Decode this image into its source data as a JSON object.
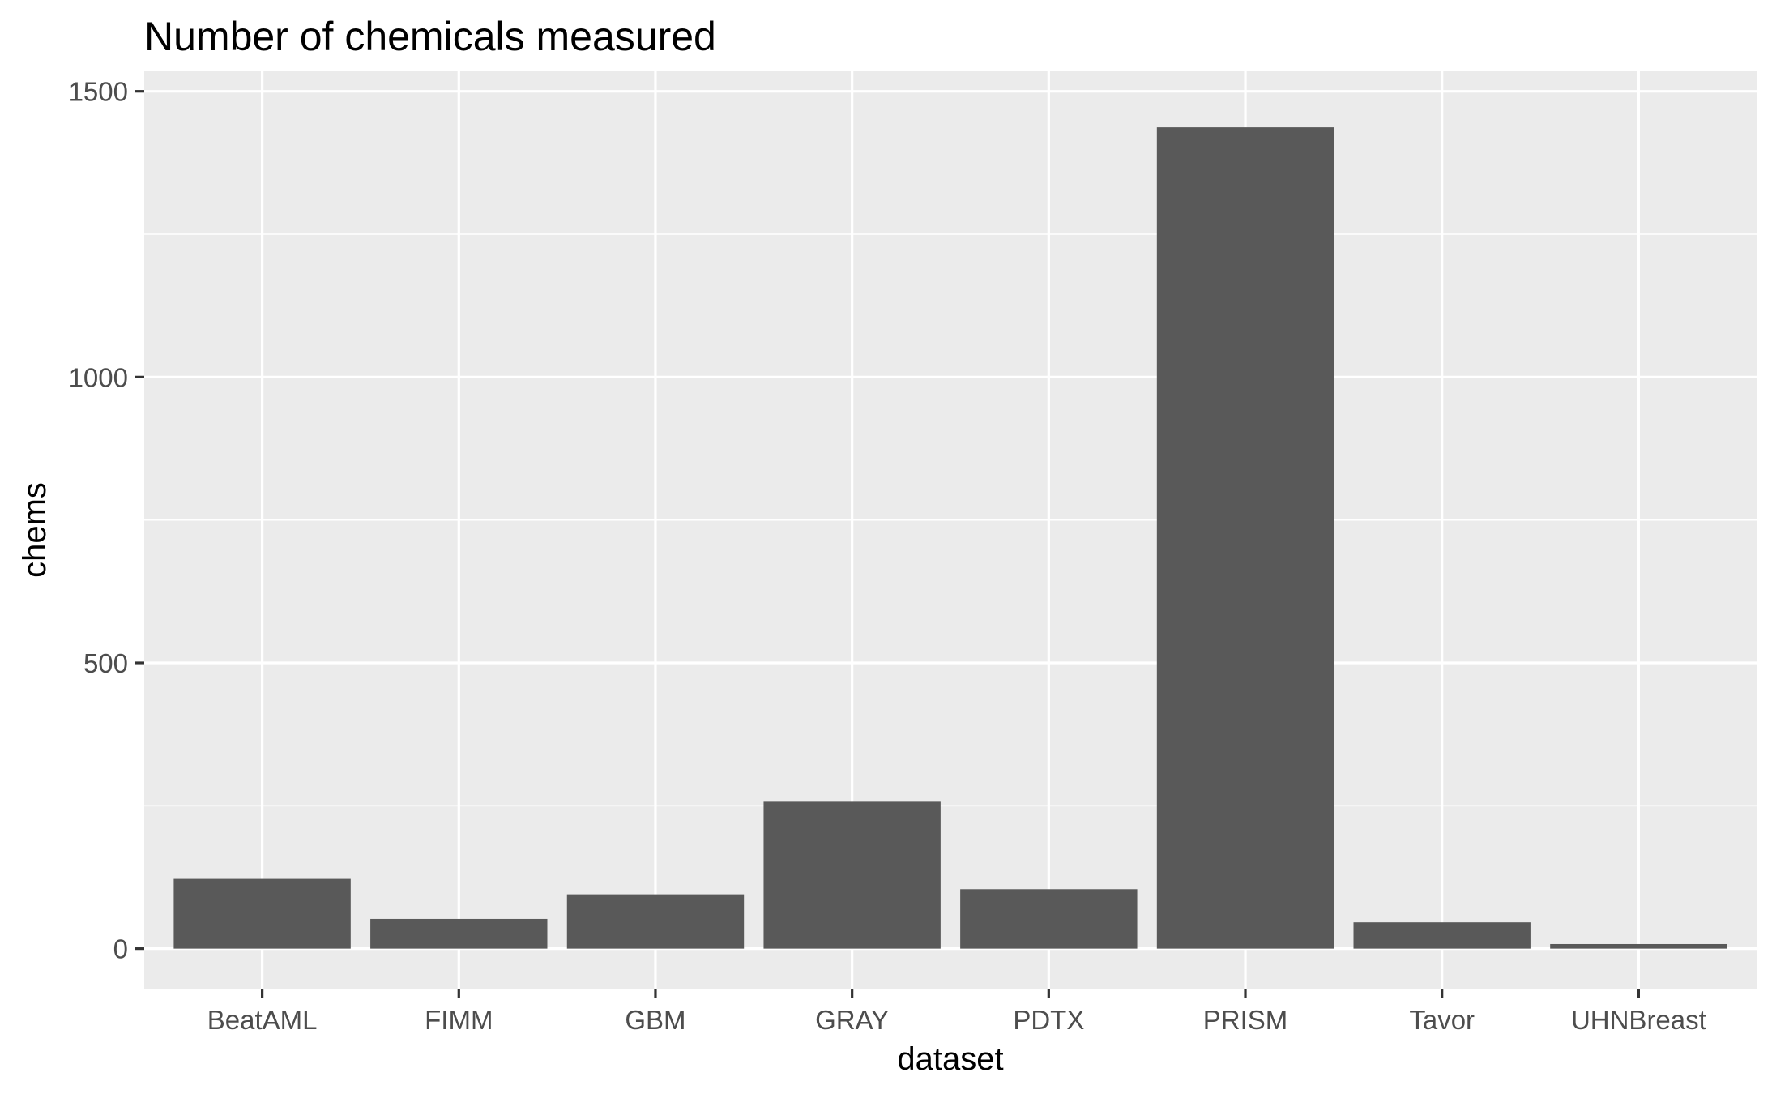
{
  "chart_data": {
    "type": "bar",
    "title": "Number of chemicals measured",
    "xlabel": "dataset",
    "ylabel": "chems",
    "categories": [
      "BeatAML",
      "FIMM",
      "GBM",
      "GRAY",
      "PDTX",
      "PRISM",
      "Tavor",
      "UHNBreast"
    ],
    "values": [
      122,
      52,
      95,
      257,
      104,
      1437,
      46,
      8
    ],
    "ylim": [
      -70,
      1535
    ],
    "yticks": [
      0,
      500,
      1000,
      1500
    ],
    "yticks_minor": [
      250,
      750,
      1250
    ],
    "grid": true,
    "legend": "none",
    "colors": {
      "bar": "#595959",
      "panel": "#ebebeb",
      "grid": "#ffffff",
      "background": "#ffffff"
    }
  }
}
